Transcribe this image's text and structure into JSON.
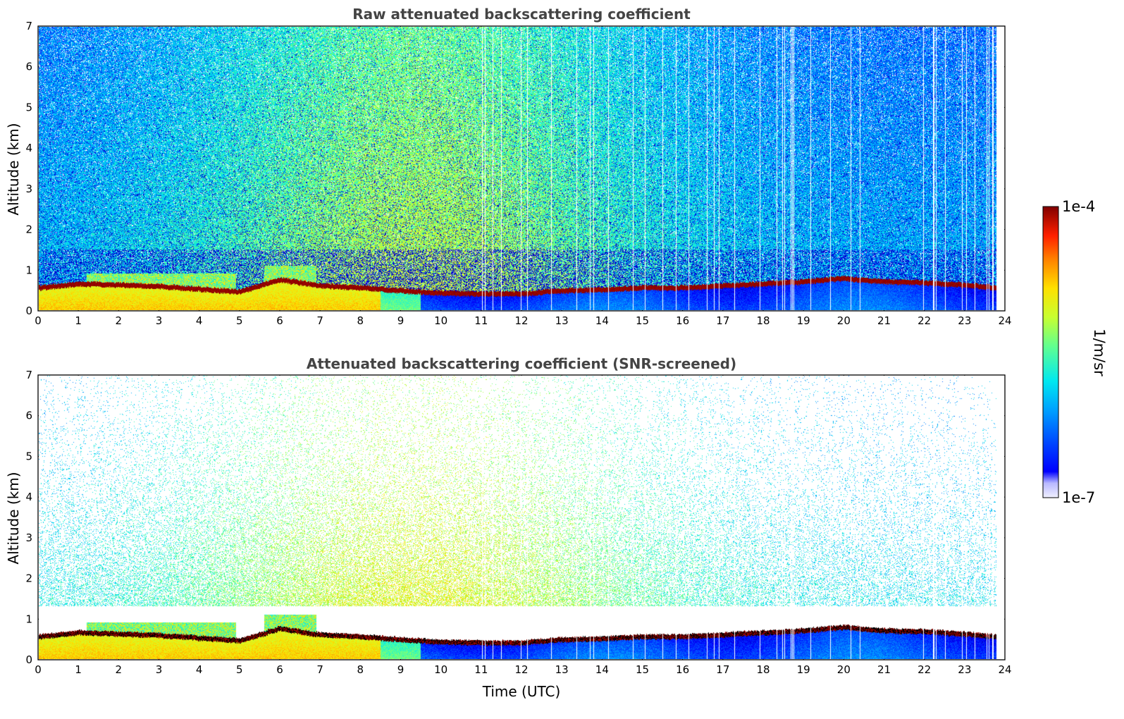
{
  "chart_data": [
    {
      "type": "heatmap",
      "title": "Raw attenuated backscattering coefficient",
      "xlabel": "",
      "ylabel": "Altitude (km)",
      "xlim": [
        0,
        24
      ],
      "ylim": [
        0,
        7
      ],
      "x_ticks": [
        "0",
        "1",
        "2",
        "3",
        "4",
        "5",
        "6",
        "7",
        "8",
        "9",
        "10",
        "11",
        "12",
        "13",
        "14",
        "15",
        "16",
        "17",
        "18",
        "19",
        "20",
        "21",
        "22",
        "23",
        "24"
      ],
      "y_ticks": [
        "0",
        "1",
        "2",
        "3",
        "4",
        "5",
        "6",
        "7"
      ],
      "data_end_time": 23.8,
      "boundary_layer_top_km": [
        {
          "t": 0,
          "h": 0.55
        },
        {
          "t": 1,
          "h": 0.65
        },
        {
          "t": 2,
          "h": 0.62
        },
        {
          "t": 3,
          "h": 0.58
        },
        {
          "t": 4,
          "h": 0.52
        },
        {
          "t": 5,
          "h": 0.45
        },
        {
          "t": 6,
          "h": 0.75
        },
        {
          "t": 7,
          "h": 0.6
        },
        {
          "t": 8,
          "h": 0.55
        },
        {
          "t": 9,
          "h": 0.48
        },
        {
          "t": 10,
          "h": 0.42
        },
        {
          "t": 11,
          "h": 0.4
        },
        {
          "t": 12,
          "h": 0.4
        },
        {
          "t": 13,
          "h": 0.48
        },
        {
          "t": 14,
          "h": 0.5
        },
        {
          "t": 15,
          "h": 0.55
        },
        {
          "t": 16,
          "h": 0.55
        },
        {
          "t": 17,
          "h": 0.6
        },
        {
          "t": 18,
          "h": 0.65
        },
        {
          "t": 19,
          "h": 0.7
        },
        {
          "t": 20,
          "h": 0.78
        },
        {
          "t": 21,
          "h": 0.7
        },
        {
          "t": 22,
          "h": 0.68
        },
        {
          "t": 23,
          "h": 0.62
        },
        {
          "t": 23.8,
          "h": 0.55
        }
      ],
      "residual_layers_km": [
        {
          "t_start": 1.2,
          "t_end": 4.9,
          "top": 0.9
        },
        {
          "t_start": 5.6,
          "t_end": 6.9,
          "top": 1.1
        }
      ]
    },
    {
      "type": "heatmap",
      "title": "Attenuated backscattering coefficient (SNR-screened)",
      "xlabel": "Time (UTC)",
      "ylabel": "Altitude (km)",
      "xlim": [
        0,
        24
      ],
      "ylim": [
        0,
        7
      ],
      "x_ticks": [
        "0",
        "1",
        "2",
        "3",
        "4",
        "5",
        "6",
        "7",
        "8",
        "9",
        "10",
        "11",
        "12",
        "13",
        "14",
        "15",
        "16",
        "17",
        "18",
        "19",
        "20",
        "21",
        "22",
        "23",
        "24"
      ],
      "y_ticks": [
        "0",
        "1",
        "2",
        "3",
        "4",
        "5",
        "6",
        "7"
      ],
      "data_end_time": 23.8
    }
  ],
  "colorbar": {
    "label": "1/m/sr",
    "max_label": "1e-4",
    "min_label": "1e-7",
    "scale": "log",
    "range": [
      1e-07,
      0.0001
    ],
    "colormap": "jet"
  },
  "colors": {
    "title_text": "#444444",
    "background": "#ffffff"
  }
}
